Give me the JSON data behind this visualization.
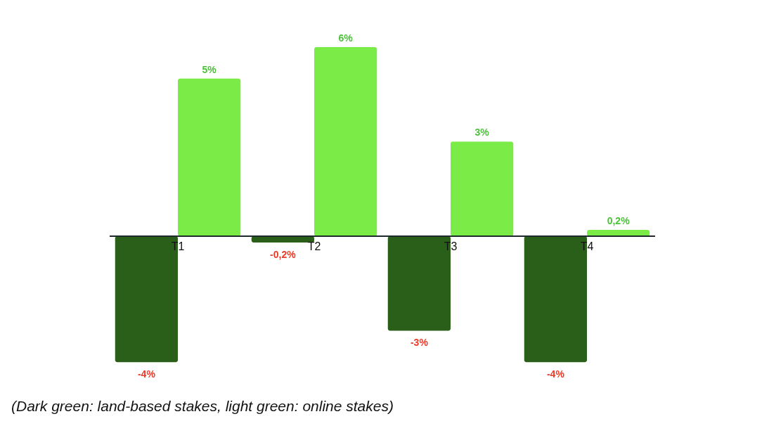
{
  "chart_data": {
    "type": "bar",
    "categories": [
      "T1",
      "T2",
      "T3",
      "T4"
    ],
    "series": [
      {
        "color": "#2a5f19",
        "values": [
          -4,
          -0.2,
          -3,
          -4
        ],
        "value_labels": [
          "-4%",
          "-0,2%",
          "-3%",
          "-4%"
        ]
      },
      {
        "color": "#7beb48",
        "values": [
          5,
          6,
          3,
          0.2
        ],
        "value_labels": [
          "5%",
          "6%",
          "3%",
          "0,2%"
        ]
      }
    ],
    "annotations": [
      "(Dark green: land-based stakes, light green: online stakes)"
    ]
  }
}
